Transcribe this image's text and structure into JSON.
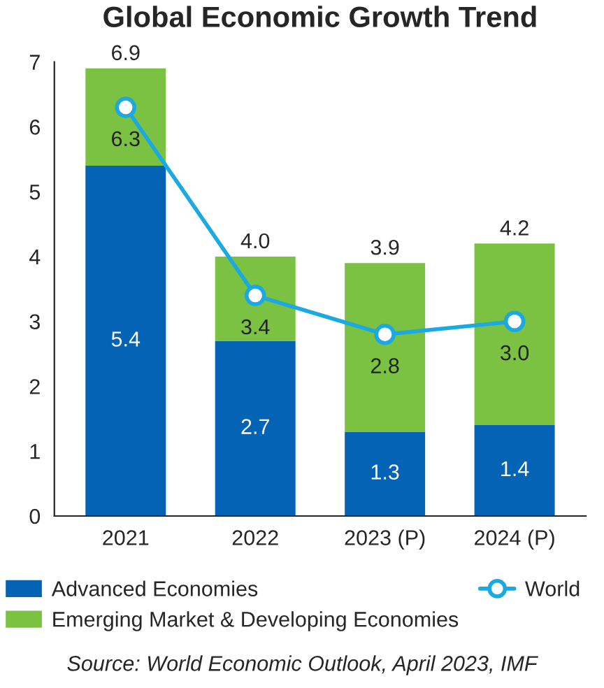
{
  "chart_data": {
    "type": "bar",
    "title": "Global Economic Growth Trend",
    "categories": [
      "2021",
      "2022",
      "2023 (P)",
      "2024 (P)"
    ],
    "stacked": true,
    "series": [
      {
        "name": "Advanced Economies",
        "color": "#0563b5",
        "values": [
          5.4,
          2.7,
          1.3,
          1.4
        ],
        "value_labels": [
          "5.4",
          "2.7",
          "1.3",
          "1.4"
        ]
      },
      {
        "name": "Emerging Market & Developing Economies",
        "color": "#7bc142",
        "values": [
          1.5,
          1.3,
          2.6,
          2.8
        ]
      },
      {
        "name": "World",
        "type": "line",
        "color": "#1ba9e1",
        "marker": "circle",
        "line_style": "solid",
        "values": [
          6.3,
          3.4,
          2.8,
          3.0
        ],
        "value_labels": [
          "6.3",
          "3.4",
          "2.8",
          "3.0"
        ]
      }
    ],
    "totals": [
      "6.9",
      "4.0",
      "3.9",
      "4.2"
    ],
    "ylim": [
      0,
      7
    ],
    "yticks": [
      0,
      1,
      2,
      3,
      4,
      5,
      6,
      7
    ],
    "grid": false,
    "legend": "bottom",
    "annotations": [
      "Source: World Economic Outlook, April 2023, IMF"
    ]
  }
}
